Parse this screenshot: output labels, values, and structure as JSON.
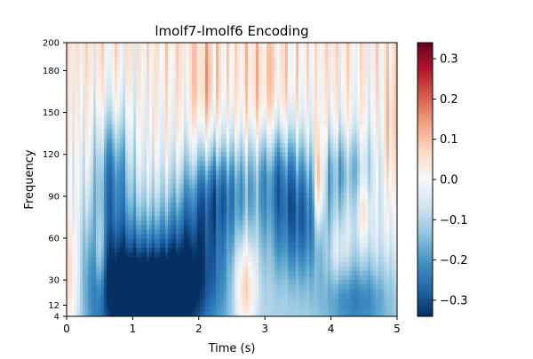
{
  "chart_data": {
    "type": "heatmap",
    "title": "lmolf7-lmolf6 Encoding",
    "xlabel": "Time (s)",
    "ylabel": "Frequency",
    "xlim": [
      0,
      5
    ],
    "ylim": [
      4,
      200
    ],
    "xticks": [
      0,
      1,
      2,
      3,
      4,
      5
    ],
    "xtick_labels": [
      "0",
      "1",
      "2",
      "3",
      "4",
      "5"
    ],
    "yticks": [
      4,
      12,
      30,
      60,
      90,
      120,
      150,
      180,
      200
    ],
    "ytick_labels": [
      "4",
      "12",
      "30",
      "60",
      "90",
      "120",
      "150",
      "180",
      "200"
    ],
    "colorbar": {
      "vmin": -0.34,
      "vmax": 0.34,
      "ticks": [
        -0.3,
        -0.2,
        -0.1,
        0.0,
        0.1,
        0.2,
        0.3
      ],
      "tick_labels": [
        "−0.3",
        "−0.2",
        "−0.1",
        "0.0",
        "0.1",
        "0.2",
        "0.3"
      ],
      "colormap": "RdBu_r",
      "colors": [
        "#053061",
        "#2166ac",
        "#4393c3",
        "#92c5de",
        "#d1e5f0",
        "#f7f7f7",
        "#fddbc7",
        "#f4a582",
        "#d6604d",
        "#b2182b",
        "#67001f"
      ]
    },
    "blobs": [
      {
        "t": 1.3,
        "f": 10,
        "st": 0.45,
        "sf": 28,
        "v": -0.3
      },
      {
        "t": 0.7,
        "f": 40,
        "st": 0.35,
        "sf": 35,
        "v": -0.2
      },
      {
        "t": 1.9,
        "f": 45,
        "st": 0.45,
        "sf": 35,
        "v": -0.22
      },
      {
        "t": 3.5,
        "f": 70,
        "st": 0.35,
        "sf": 30,
        "v": -0.2
      },
      {
        "t": 2.3,
        "f": 95,
        "st": 0.35,
        "sf": 25,
        "v": -0.18
      },
      {
        "t": 0.7,
        "f": 110,
        "st": 0.18,
        "sf": 30,
        "v": -0.18
      },
      {
        "t": 4.4,
        "f": 15,
        "st": 0.35,
        "sf": 20,
        "v": -0.14
      },
      {
        "t": 3.2,
        "f": 110,
        "st": 0.3,
        "sf": 25,
        "v": -0.15
      },
      {
        "t": 4.2,
        "f": 110,
        "st": 0.3,
        "sf": 20,
        "v": -0.12
      },
      {
        "t": 2.7,
        "f": 25,
        "st": 0.12,
        "sf": 25,
        "v": 0.2
      },
      {
        "t": 0.05,
        "f": 30,
        "st": 0.12,
        "sf": 35,
        "v": 0.17
      },
      {
        "t": 0.5,
        "f": 48,
        "st": 0.06,
        "sf": 22,
        "v": 0.14
      },
      {
        "t": 3.82,
        "f": 100,
        "st": 0.05,
        "sf": 25,
        "v": 0.28
      },
      {
        "t": 4.5,
        "f": 80,
        "st": 0.06,
        "sf": 15,
        "v": 0.1
      },
      {
        "t": 2.1,
        "f": 170,
        "st": 0.15,
        "sf": 30,
        "v": 0.08
      },
      {
        "t": 3.0,
        "f": 160,
        "st": 0.25,
        "sf": 35,
        "v": 0.06
      },
      {
        "t": 4.9,
        "f": 130,
        "st": 0.07,
        "sf": 40,
        "v": 0.1
      },
      {
        "t": 4.1,
        "f": 50,
        "st": 0.1,
        "sf": 15,
        "v": 0.07
      }
    ]
  }
}
